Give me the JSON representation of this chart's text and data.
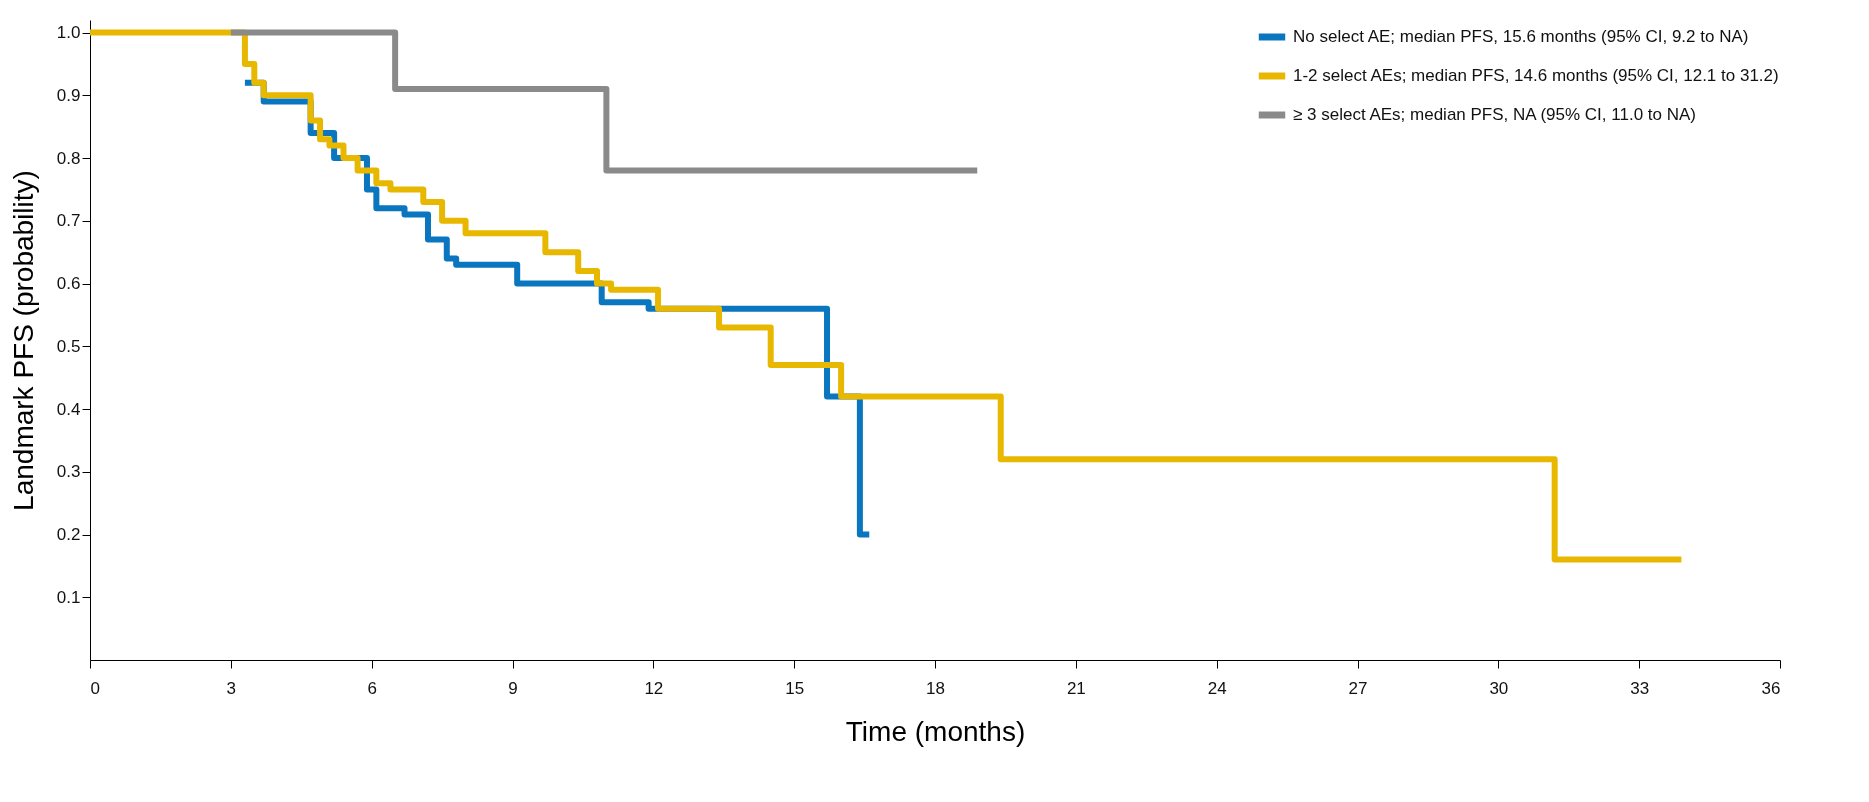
{
  "chart_data": {
    "type": "step",
    "xlabel": "Time (months)",
    "ylabel": "Landmark PFS (probability)",
    "xlim": [
      0,
      36
    ],
    "xticks": [
      0,
      3,
      6,
      9,
      12,
      15,
      18,
      21,
      24,
      27,
      30,
      33,
      36
    ],
    "ylim": [
      0,
      1.02
    ],
    "yticks": [
      0.1,
      0.2,
      0.3,
      0.4,
      0.5,
      0.6,
      0.7,
      0.8,
      0.9,
      {
        "value": 1,
        "label": "1.0"
      }
    ],
    "legend": "top right",
    "grid": false,
    "series": [
      {
        "name": "No select AE; median PFS, 15.6 months (95% CI, 9.2 to NA)",
        "color": "#0a76bf",
        "x": [
          3.3,
          3.7,
          4.7,
          5.2,
          5.9,
          6.1,
          6.7,
          7.2,
          7.6,
          7.8,
          9.1,
          10.9,
          11.9,
          15.7,
          16.4,
          16.6
        ],
        "values": [
          0.92,
          0.89,
          0.84,
          0.8,
          0.75,
          0.72,
          0.71,
          0.67,
          0.64,
          0.63,
          0.6,
          0.57,
          0.56,
          0.42,
          0.2,
          0.2
        ]
      },
      {
        "name": "1-2 select AEs; median PFS, 14.6 months (95% CI, 12.1 to 31.2)",
        "color": "#e8b800",
        "x": [
          0,
          3.3,
          3.5,
          3.7,
          4.7,
          4.9,
          5.1,
          5.4,
          5.7,
          6.1,
          6.4,
          7.1,
          7.5,
          8,
          9.7,
          10.4,
          10.8,
          11.1,
          12.1,
          13.4,
          14.5,
          16,
          19.4,
          31.2,
          33.9
        ],
        "values": [
          1,
          0.95,
          0.92,
          0.9,
          0.86,
          0.83,
          0.82,
          0.8,
          0.78,
          0.76,
          0.75,
          0.73,
          0.7,
          0.68,
          0.65,
          0.62,
          0.6,
          0.59,
          0.56,
          0.53,
          0.47,
          0.42,
          0.32,
          0.16,
          0.16
        ]
      },
      {
        "name": "≥ 3 select AEs; median PFS, NA (95% CI, 11.0 to NA)",
        "color": "#8a8a8a",
        "x": [
          3,
          6.5,
          11,
          18.9
        ],
        "values": [
          1,
          0.91,
          0.78,
          0.78
        ]
      }
    ]
  }
}
